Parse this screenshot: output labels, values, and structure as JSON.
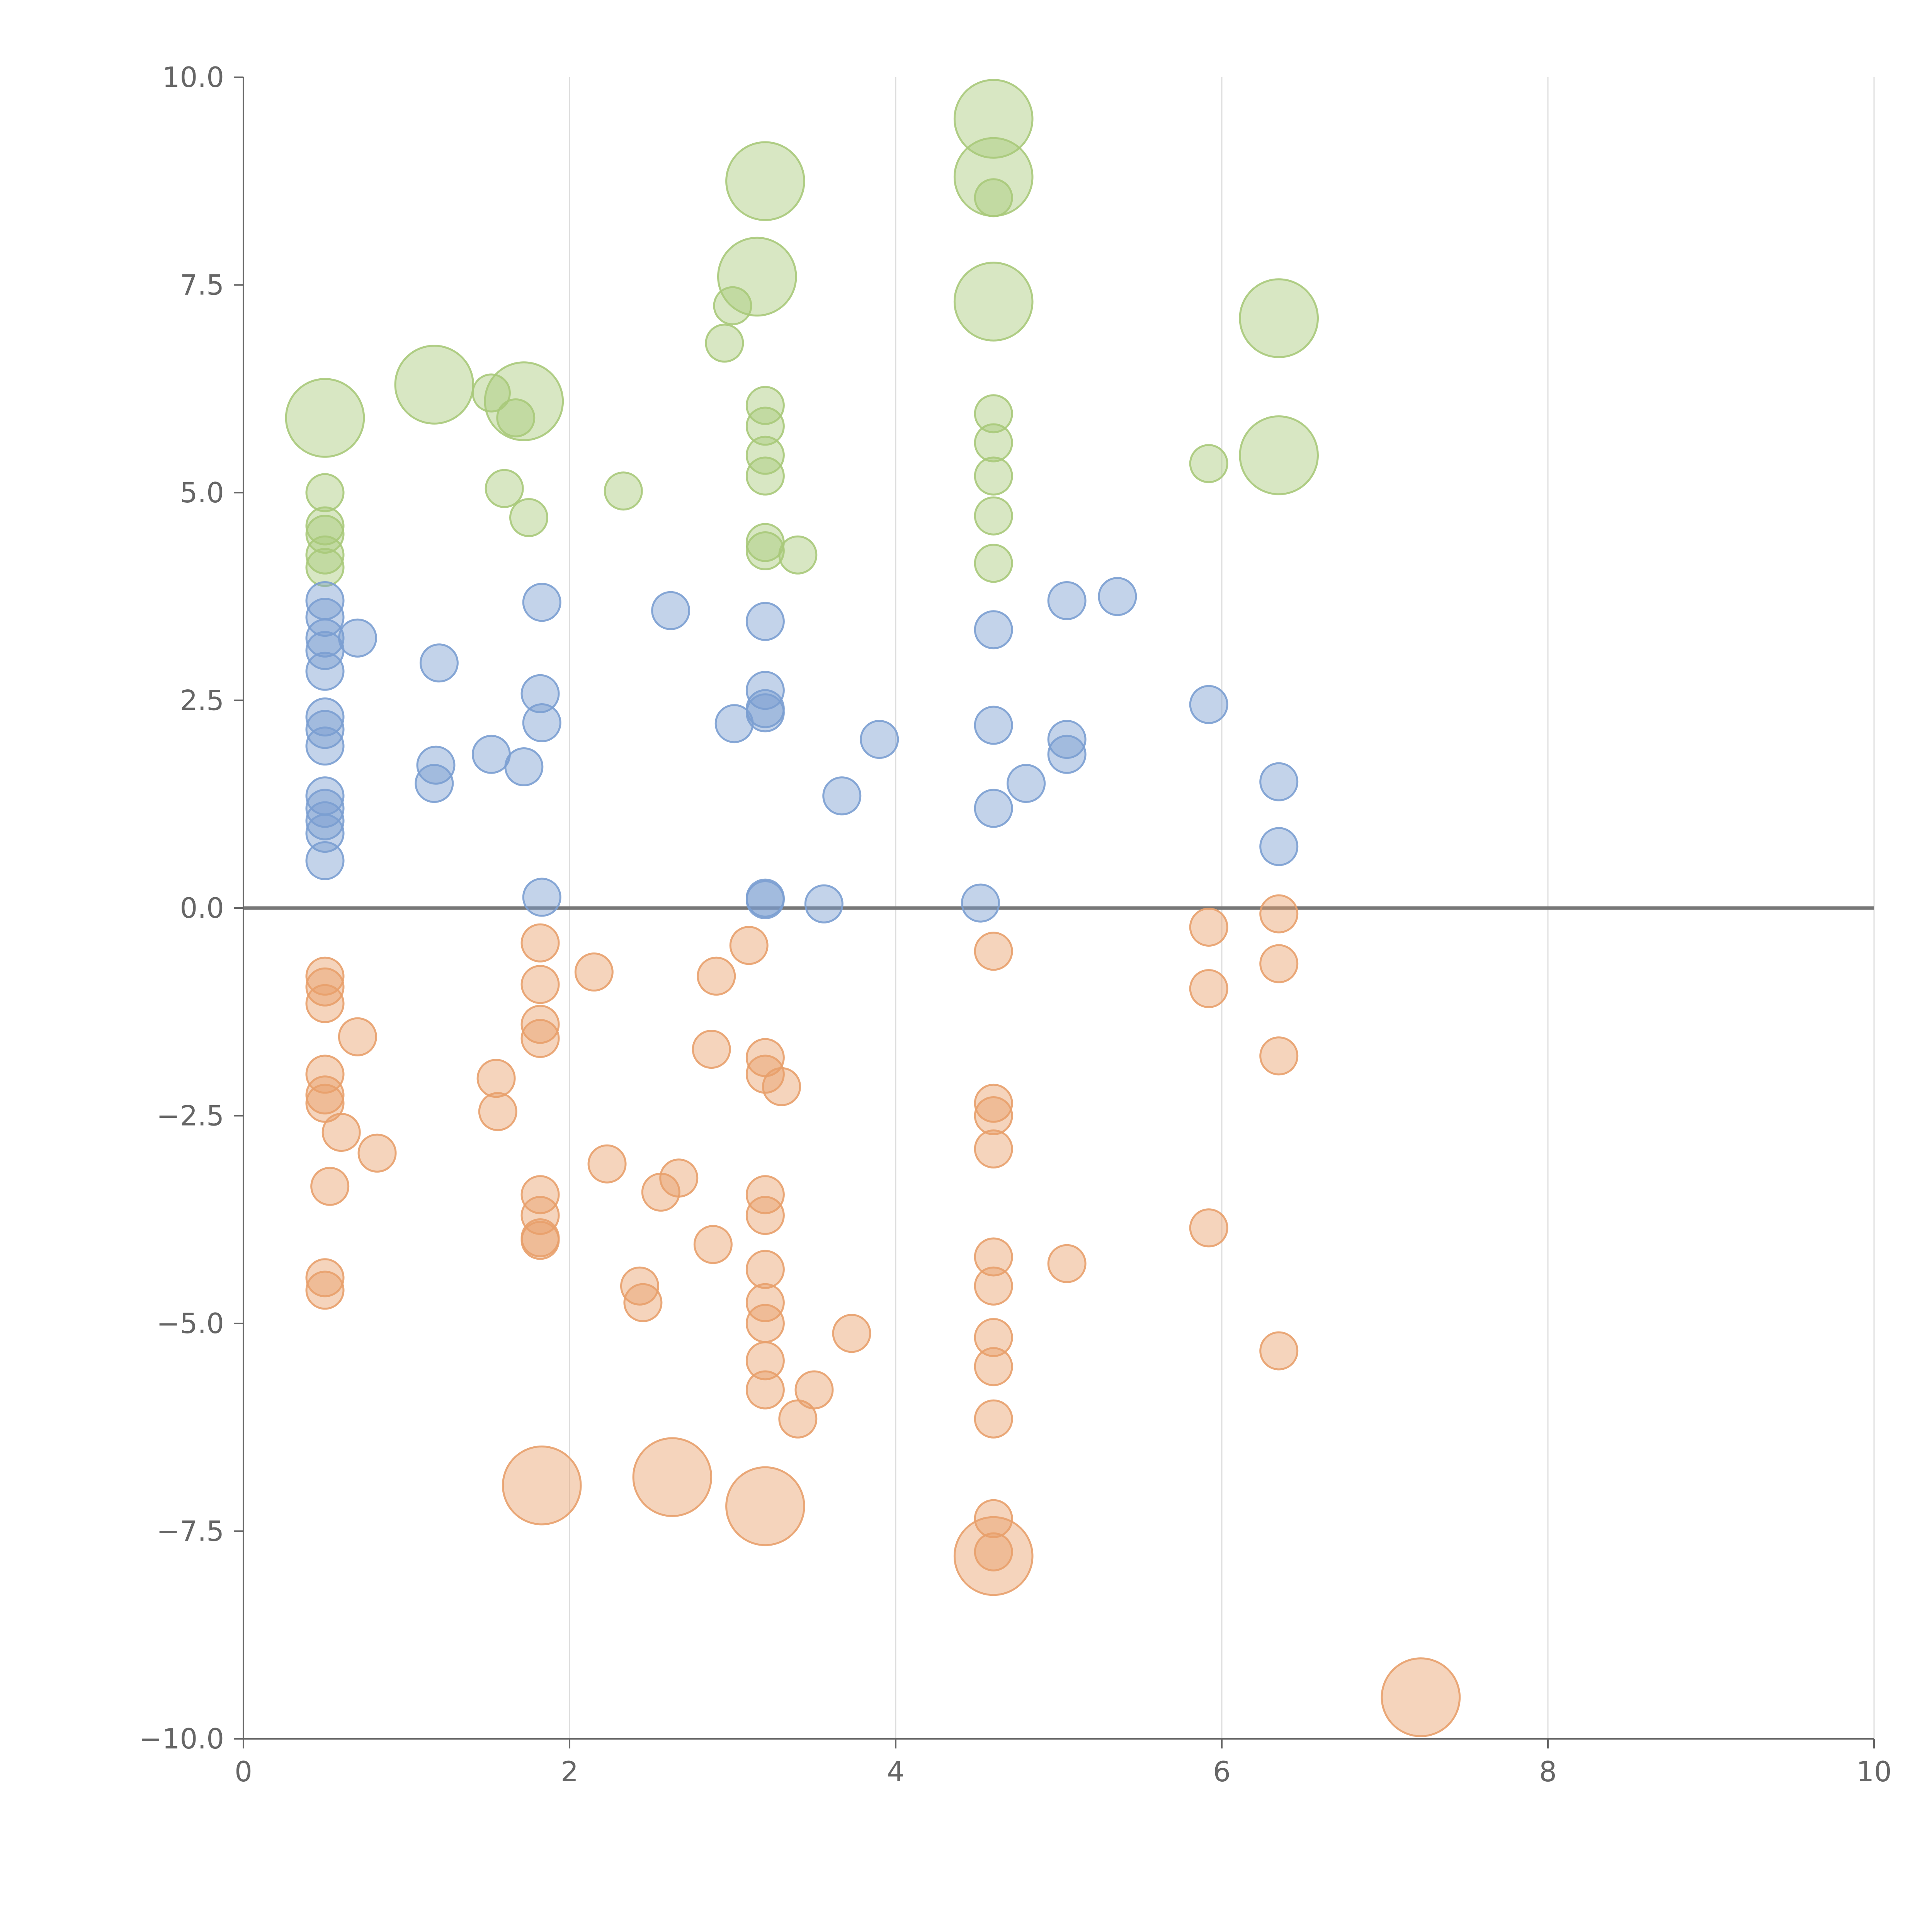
{
  "chart_data": {
    "type": "scatter",
    "subtype": "bubble",
    "title": "",
    "xlabel": "",
    "ylabel": "",
    "xlim": [
      0,
      10
    ],
    "ylim": [
      -10,
      10
    ],
    "grid": "vertical",
    "legend": "none",
    "x_ticks": [
      0,
      2,
      4,
      6,
      8,
      10
    ],
    "x_tick_labels": [
      "0",
      "2",
      "4",
      "6",
      "8",
      "10"
    ],
    "y_ticks": [
      10,
      7.5,
      5,
      2.5,
      0,
      -2.5,
      -5,
      -7.5,
      -10
    ],
    "y_tick_labels": [
      "10.0",
      "7.5",
      "5.0",
      "2.5",
      "0.0",
      "−2.5",
      "−5.0",
      "−7.5",
      "−10.0"
    ],
    "colors": {
      "green": "#a8c97a",
      "blue": "#7b9ed1",
      "orange": "#e8a06b",
      "text": "#666666",
      "grid": "#dddddd"
    },
    "size_units": "relative (1 = small bubble)",
    "series": [
      {
        "name": "green",
        "color": "#a8c97a",
        "points": [
          [
            4.6,
            9.5,
            2.1
          ],
          [
            4.6,
            8.8,
            2.1
          ],
          [
            4.6,
            8.55,
            1
          ],
          [
            3.2,
            8.75,
            2.1
          ],
          [
            3.15,
            7.6,
            2.1
          ],
          [
            3.0,
            7.25,
            1
          ],
          [
            2.95,
            6.8,
            1
          ],
          [
            4.6,
            7.3,
            2.1
          ],
          [
            6.35,
            7.1,
            2.1
          ],
          [
            6.35,
            5.45,
            2.1
          ],
          [
            5.92,
            5.35,
            1
          ],
          [
            0.5,
            5.9,
            2.1
          ],
          [
            1.17,
            6.3,
            2.1
          ],
          [
            1.72,
            6.1,
            2.1
          ],
          [
            1.52,
            6.2,
            1
          ],
          [
            1.67,
            5.9,
            1
          ],
          [
            3.2,
            6.05,
            1
          ],
          [
            3.2,
            5.8,
            1
          ],
          [
            3.2,
            5.45,
            1
          ],
          [
            3.2,
            5.2,
            1
          ],
          [
            4.6,
            5.95,
            1
          ],
          [
            4.6,
            5.6,
            1
          ],
          [
            4.6,
            5.2,
            1
          ],
          [
            4.6,
            4.72,
            1
          ],
          [
            4.6,
            4.15,
            1
          ],
          [
            0.5,
            5.0,
            1
          ],
          [
            0.5,
            4.6,
            1
          ],
          [
            0.5,
            4.5,
            1
          ],
          [
            0.5,
            4.25,
            1
          ],
          [
            0.5,
            4.1,
            1
          ],
          [
            1.6,
            5.05,
            1
          ],
          [
            1.75,
            4.7,
            1
          ],
          [
            2.33,
            5.02,
            1
          ],
          [
            3.2,
            4.4,
            1
          ],
          [
            3.2,
            4.3,
            1
          ],
          [
            3.4,
            4.25,
            1
          ]
        ]
      },
      {
        "name": "blue",
        "color": "#7b9ed1",
        "points": [
          [
            0.5,
            3.7,
            1
          ],
          [
            0.5,
            3.5,
            1
          ],
          [
            0.5,
            3.25,
            1
          ],
          [
            0.5,
            3.1,
            1
          ],
          [
            0.5,
            2.85,
            1
          ],
          [
            0.5,
            2.3,
            1
          ],
          [
            0.5,
            2.15,
            1
          ],
          [
            0.5,
            1.95,
            1
          ],
          [
            0.5,
            1.35,
            1
          ],
          [
            0.5,
            1.2,
            1
          ],
          [
            0.5,
            1.05,
            1
          ],
          [
            0.5,
            0.9,
            1
          ],
          [
            0.5,
            0.57,
            1
          ],
          [
            0.7,
            3.25,
            1
          ],
          [
            1.2,
            2.95,
            1
          ],
          [
            1.18,
            1.72,
            1
          ],
          [
            1.17,
            1.5,
            1
          ],
          [
            1.52,
            1.85,
            1
          ],
          [
            1.72,
            1.7,
            1
          ],
          [
            1.83,
            3.68,
            1
          ],
          [
            1.82,
            2.58,
            1
          ],
          [
            1.83,
            2.23,
            1
          ],
          [
            1.83,
            0.13,
            1
          ],
          [
            2.62,
            3.58,
            1
          ],
          [
            3.2,
            3.45,
            1
          ],
          [
            3.2,
            2.62,
            1
          ],
          [
            3.2,
            2.4,
            1
          ],
          [
            3.2,
            2.35,
            1
          ],
          [
            3.01,
            2.22,
            1
          ],
          [
            3.2,
            0.12,
            1
          ],
          [
            3.2,
            0.1,
            1
          ],
          [
            3.56,
            0.05,
            1
          ],
          [
            3.67,
            1.35,
            1
          ],
          [
            3.9,
            2.03,
            1
          ],
          [
            4.6,
            3.35,
            1
          ],
          [
            4.6,
            2.2,
            1
          ],
          [
            4.6,
            1.2,
            1
          ],
          [
            4.52,
            0.06,
            1
          ],
          [
            4.8,
            1.5,
            1
          ],
          [
            5.05,
            3.7,
            1
          ],
          [
            5.05,
            2.03,
            1
          ],
          [
            5.05,
            1.85,
            1
          ],
          [
            5.36,
            3.75,
            1
          ],
          [
            5.92,
            2.45,
            1
          ],
          [
            6.35,
            1.52,
            1
          ],
          [
            6.35,
            0.74,
            1
          ]
        ]
      },
      {
        "name": "orange",
        "color": "#e8a06b",
        "points": [
          [
            0.5,
            -0.82,
            1
          ],
          [
            0.5,
            -0.95,
            1
          ],
          [
            0.5,
            -1.15,
            1
          ],
          [
            0.7,
            -1.55,
            1
          ],
          [
            0.5,
            -2.0,
            1
          ],
          [
            0.5,
            -2.25,
            1
          ],
          [
            0.5,
            -2.35,
            1
          ],
          [
            0.6,
            -2.7,
            1
          ],
          [
            0.82,
            -2.95,
            1
          ],
          [
            0.53,
            -3.35,
            1
          ],
          [
            0.5,
            -4.45,
            1
          ],
          [
            0.5,
            -4.6,
            1
          ],
          [
            1.55,
            -2.05,
            1
          ],
          [
            1.56,
            -2.45,
            1
          ],
          [
            1.82,
            -0.42,
            1
          ],
          [
            1.82,
            -0.92,
            1
          ],
          [
            1.82,
            -1.4,
            1
          ],
          [
            1.82,
            -1.57,
            1
          ],
          [
            1.82,
            -3.45,
            1
          ],
          [
            1.82,
            -3.7,
            1
          ],
          [
            1.82,
            -3.97,
            1
          ],
          [
            1.82,
            -4.0,
            1
          ],
          [
            2.15,
            -0.77,
            1
          ],
          [
            2.23,
            -3.08,
            1
          ],
          [
            2.43,
            -4.55,
            1
          ],
          [
            2.45,
            -4.75,
            1
          ],
          [
            2.56,
            -3.42,
            1
          ],
          [
            2.67,
            -3.25,
            1
          ],
          [
            2.88,
            -4.05,
            1
          ],
          [
            2.9,
            -0.82,
            1
          ],
          [
            2.87,
            -1.7,
            1
          ],
          [
            3.1,
            -0.45,
            1
          ],
          [
            3.2,
            -1.8,
            1
          ],
          [
            3.2,
            -2.0,
            1
          ],
          [
            3.3,
            -2.15,
            1
          ],
          [
            3.2,
            -3.45,
            1
          ],
          [
            3.2,
            -3.7,
            1
          ],
          [
            3.2,
            -4.35,
            1
          ],
          [
            3.2,
            -4.75,
            1
          ],
          [
            3.2,
            -5.0,
            1
          ],
          [
            3.2,
            -5.45,
            1
          ],
          [
            3.2,
            -5.8,
            1
          ],
          [
            3.4,
            -6.15,
            1
          ],
          [
            3.5,
            -5.8,
            1
          ],
          [
            3.73,
            -5.12,
            1
          ],
          [
            4.6,
            -0.52,
            1
          ],
          [
            4.6,
            -2.35,
            1
          ],
          [
            4.6,
            -2.5,
            1
          ],
          [
            4.6,
            -2.9,
            1
          ],
          [
            4.6,
            -4.2,
            1
          ],
          [
            4.6,
            -4.55,
            1
          ],
          [
            4.6,
            -5.17,
            1
          ],
          [
            4.6,
            -5.52,
            1
          ],
          [
            4.6,
            -6.15,
            1
          ],
          [
            4.6,
            -7.35,
            1
          ],
          [
            4.6,
            -7.75,
            1
          ],
          [
            5.05,
            -4.28,
            1
          ],
          [
            5.92,
            -0.23,
            1
          ],
          [
            5.92,
            -0.97,
            1
          ],
          [
            5.92,
            -3.85,
            1
          ],
          [
            6.35,
            -0.07,
            1
          ],
          [
            6.35,
            -0.67,
            1
          ],
          [
            6.35,
            -1.78,
            1
          ],
          [
            6.35,
            -5.33,
            1
          ],
          [
            1.83,
            -6.95,
            2.1
          ],
          [
            2.63,
            -6.85,
            2.1
          ],
          [
            3.2,
            -7.2,
            2.1
          ],
          [
            4.6,
            -7.8,
            2.1
          ],
          [
            7.22,
            -9.5,
            2.1
          ]
        ]
      }
    ]
  }
}
